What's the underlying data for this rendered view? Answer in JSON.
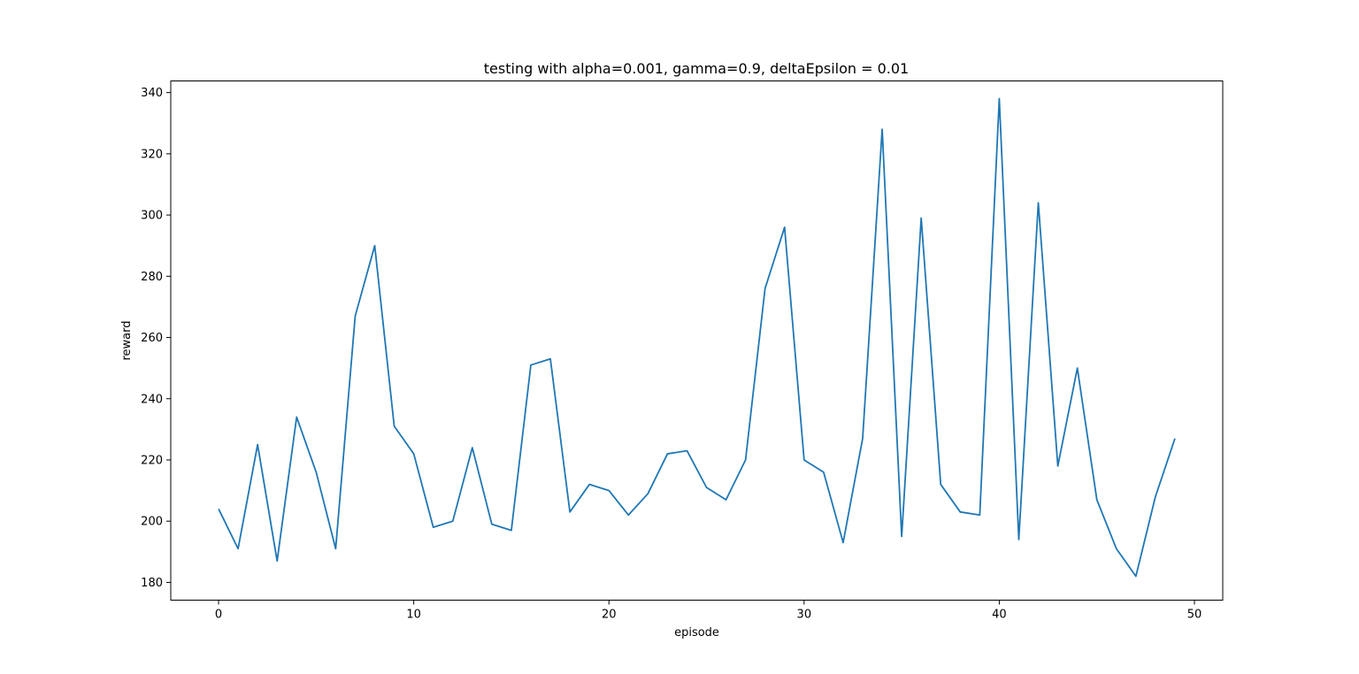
{
  "chart_data": {
    "type": "line",
    "title": "testing with alpha=0.001, gamma=0.9, deltaEpsilon = 0.01",
    "xlabel": "episode",
    "ylabel": "reward",
    "xlim": [
      -2.45,
      51.45
    ],
    "ylim": [
      174.2,
      343.8
    ],
    "xticks": [
      0,
      10,
      20,
      30,
      40,
      50
    ],
    "yticks": [
      180,
      200,
      220,
      240,
      260,
      280,
      300,
      320,
      340
    ],
    "grid": false,
    "color": "#1f77b4",
    "series": [
      {
        "x": [
          0,
          1,
          2,
          3,
          4,
          5,
          6,
          7,
          8,
          9,
          10,
          11,
          12,
          13,
          14,
          15,
          16,
          17,
          18,
          19,
          20,
          21,
          22,
          23,
          24,
          25,
          26,
          27,
          28,
          29,
          30,
          31,
          32,
          33,
          34,
          35,
          36,
          37,
          38,
          39,
          40,
          41,
          42,
          43,
          44,
          45,
          46,
          47,
          48,
          49
        ],
        "values": [
          204,
          191,
          225,
          187,
          234,
          216,
          191,
          267,
          290,
          231,
          222,
          198,
          200,
          224,
          199,
          197,
          251,
          253,
          203,
          212,
          210,
          202,
          209,
          222,
          223,
          211,
          207,
          220,
          276,
          296,
          220,
          216,
          193,
          227,
          328,
          195,
          299,
          212,
          203,
          202,
          338,
          194,
          304,
          218,
          250,
          207,
          191,
          182,
          208,
          227
        ]
      }
    ]
  }
}
